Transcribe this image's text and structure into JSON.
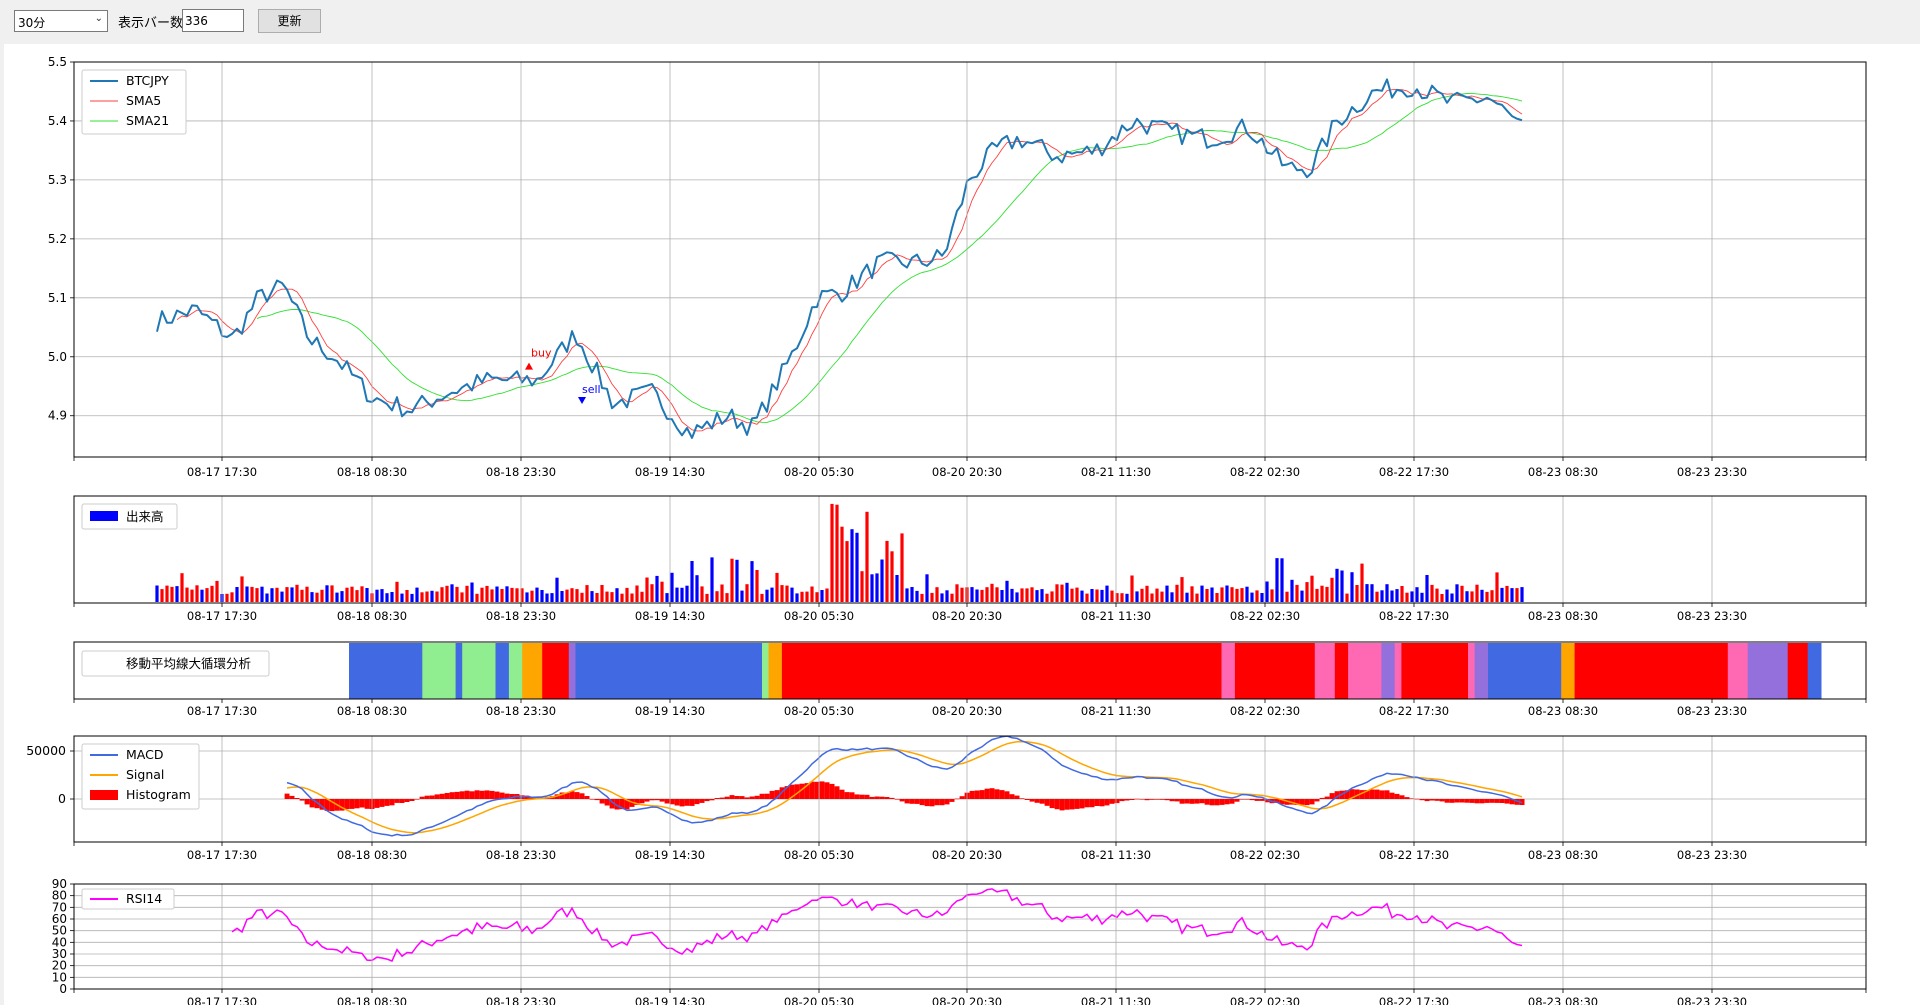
{
  "toolbar": {
    "timeframe": "30分",
    "bars_label": "表示バー数",
    "bars_value": "336",
    "refresh_label": "更新"
  },
  "x_ticks": [
    "08-17 17:30",
    "08-18 08:30",
    "08-18 23:30",
    "08-19 14:30",
    "08-20 05:30",
    "08-20 20:30",
    "08-21 11:30",
    "08-22 02:30",
    "08-22 17:30",
    "08-23 08:30",
    "08-23 23:30"
  ],
  "chart_data": [
    {
      "type": "line",
      "title": "",
      "ylim": [
        4.83,
        5.5
      ],
      "y_ticks": [
        "5.5",
        "5.4",
        "5.3",
        "5.2",
        "5.1",
        "5.0",
        "4.9"
      ],
      "legend": "top-left",
      "series": [
        {
          "name": "BTCJPY",
          "color": "#1f77b4",
          "keypoints": [
            [
              0.0,
              5.06
            ],
            [
              0.03,
              5.08
            ],
            [
              0.06,
              5.03
            ],
            [
              0.08,
              5.1
            ],
            [
              0.1,
              5.12
            ],
            [
              0.12,
              5.03
            ],
            [
              0.14,
              5.0
            ],
            [
              0.17,
              4.93
            ],
            [
              0.2,
              4.91
            ],
            [
              0.23,
              4.94
            ],
            [
              0.26,
              4.96
            ],
            [
              0.3,
              4.96
            ],
            [
              0.33,
              5.04
            ],
            [
              0.36,
              4.92
            ],
            [
              0.39,
              4.94
            ],
            [
              0.42,
              4.87
            ],
            [
              0.45,
              4.9
            ],
            [
              0.47,
              4.88
            ],
            [
              0.5,
              5.0
            ],
            [
              0.52,
              5.1
            ],
            [
              0.54,
              5.11
            ],
            [
              0.57,
              5.16
            ],
            [
              0.6,
              5.16
            ],
            [
              0.62,
              5.17
            ],
            [
              0.64,
              5.3
            ],
            [
              0.66,
              5.35
            ],
            [
              0.68,
              5.37
            ],
            [
              0.71,
              5.34
            ],
            [
              0.74,
              5.35
            ],
            [
              0.77,
              5.4
            ],
            [
              0.8,
              5.38
            ],
            [
              0.83,
              5.37
            ],
            [
              0.86,
              5.39
            ],
            [
              0.89,
              5.32
            ],
            [
              0.91,
              5.32
            ],
            [
              0.93,
              5.4
            ],
            [
              0.96,
              5.45
            ],
            [
              0.99,
              5.46
            ],
            [
              1.02,
              5.43
            ],
            [
              1.05,
              5.44
            ],
            [
              1.08,
              5.38
            ]
          ]
        },
        {
          "name": "SMA5",
          "color": "#ff4040",
          "keypoints": [
            [
              0.02,
              5.06
            ],
            [
              0.06,
              5.05
            ],
            [
              0.1,
              5.1
            ],
            [
              0.13,
              5.05
            ],
            [
              0.17,
              4.95
            ],
            [
              0.21,
              4.92
            ],
            [
              0.26,
              4.95
            ],
            [
              0.3,
              4.96
            ],
            [
              0.33,
              5.0
            ],
            [
              0.36,
              4.95
            ],
            [
              0.4,
              4.93
            ],
            [
              0.44,
              4.89
            ],
            [
              0.48,
              4.9
            ],
            [
              0.52,
              5.07
            ],
            [
              0.56,
              5.12
            ],
            [
              0.6,
              5.16
            ],
            [
              0.64,
              5.25
            ],
            [
              0.67,
              5.33
            ],
            [
              0.71,
              5.35
            ],
            [
              0.75,
              5.36
            ],
            [
              0.79,
              5.38
            ],
            [
              0.83,
              5.38
            ],
            [
              0.87,
              5.37
            ],
            [
              0.91,
              5.33
            ],
            [
              0.94,
              5.38
            ],
            [
              0.98,
              5.44
            ],
            [
              1.02,
              5.44
            ],
            [
              1.06,
              5.43
            ],
            [
              1.08,
              5.4
            ]
          ]
        },
        {
          "name": "SMA21",
          "color": "#30e030",
          "keypoints": [
            [
              0.07,
              5.07
            ],
            [
              0.12,
              5.07
            ],
            [
              0.16,
              5.02
            ],
            [
              0.2,
              4.96
            ],
            [
              0.24,
              4.93
            ],
            [
              0.28,
              4.94
            ],
            [
              0.33,
              4.96
            ],
            [
              0.38,
              4.97
            ],
            [
              0.42,
              4.93
            ],
            [
              0.46,
              4.9
            ],
            [
              0.49,
              4.92
            ],
            [
              0.53,
              5.0
            ],
            [
              0.57,
              5.09
            ],
            [
              0.61,
              5.15
            ],
            [
              0.65,
              5.2
            ],
            [
              0.69,
              5.27
            ],
            [
              0.73,
              5.33
            ],
            [
              0.77,
              5.35
            ],
            [
              0.81,
              5.38
            ],
            [
              0.85,
              5.39
            ],
            [
              0.89,
              5.36
            ],
            [
              0.92,
              5.33
            ],
            [
              0.95,
              5.39
            ],
            [
              0.99,
              5.44
            ],
            [
              1.03,
              5.45
            ],
            [
              1.08,
              5.42
            ]
          ]
        }
      ],
      "annotations": [
        {
          "text": "buy",
          "color": "#ff0000"
        },
        {
          "text": "sell",
          "color": "#0000ff"
        }
      ]
    },
    {
      "type": "bar",
      "legend": "top-left",
      "series": [
        {
          "name": "出来高",
          "colors": [
            "#0000ff",
            "#ff0000"
          ]
        }
      ]
    },
    {
      "type": "heatmap",
      "legend": "top-left",
      "series": [
        {
          "name": "移動平均線大循環分析"
        }
      ],
      "segments": [
        {
          "color": "#4169e1",
          "len": 11
        },
        {
          "color": "#90ee90",
          "len": 5
        },
        {
          "color": "#4169e1",
          "len": 1
        },
        {
          "color": "#90ee90",
          "len": 5
        },
        {
          "color": "#4169e1",
          "len": 2
        },
        {
          "color": "#90ee90",
          "len": 2
        },
        {
          "color": "#ffa500",
          "len": 3
        },
        {
          "color": "#ff0000",
          "len": 4
        },
        {
          "color": "#9370db",
          "len": 1
        },
        {
          "color": "#4169e1",
          "len": 28
        },
        {
          "color": "#90ee90",
          "len": 1
        },
        {
          "color": "#ffa500",
          "len": 2
        },
        {
          "color": "#ff0000",
          "len": 66
        },
        {
          "color": "#ff69b4",
          "len": 2
        },
        {
          "color": "#ff0000",
          "len": 12
        },
        {
          "color": "#ff69b4",
          "len": 3
        },
        {
          "color": "#ff0000",
          "len": 2
        },
        {
          "color": "#ff69b4",
          "len": 5
        },
        {
          "color": "#9370db",
          "len": 2
        },
        {
          "color": "#ff69b4",
          "len": 1
        },
        {
          "color": "#ff0000",
          "len": 10
        },
        {
          "color": "#ff69b4",
          "len": 1
        },
        {
          "color": "#9370db",
          "len": 2
        },
        {
          "color": "#4169e1",
          "len": 11
        },
        {
          "color": "#ffa500",
          "len": 2
        },
        {
          "color": "#ff0000",
          "len": 23
        },
        {
          "color": "#ff69b4",
          "len": 3
        },
        {
          "color": "#9370db",
          "len": 6
        },
        {
          "color": "#ff0000",
          "len": 3
        },
        {
          "color": "#4169e1",
          "len": 2
        }
      ]
    },
    {
      "type": "line",
      "legend": "top-left",
      "y_ticks": [
        "50000",
        "0"
      ],
      "series": [
        {
          "name": "MACD",
          "color": "#4169e1"
        },
        {
          "name": "Signal",
          "color": "#ffa500"
        },
        {
          "name": "Histogram",
          "color": "#ff0000"
        }
      ]
    },
    {
      "type": "line",
      "legend": "top-left",
      "ylim": [
        0,
        90
      ],
      "y_ticks": [
        "90",
        "80",
        "70",
        "60",
        "50",
        "40",
        "30",
        "20",
        "10",
        "0"
      ],
      "series": [
        {
          "name": "RSI14",
          "color": "#ff00ff"
        }
      ]
    }
  ]
}
